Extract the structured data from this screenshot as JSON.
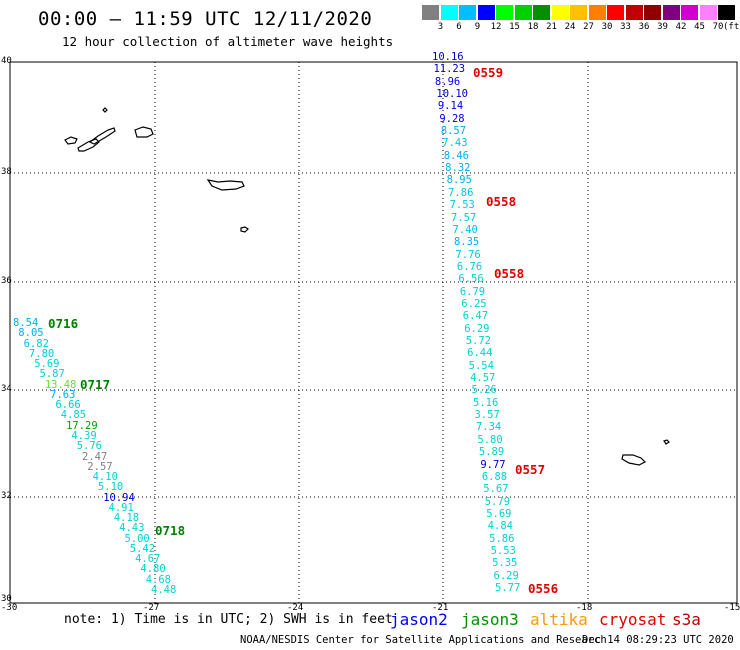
{
  "title": "00:00 – 11:59 UTC 12/11/2020",
  "subtitle": "12 hour collection of altimeter wave heights",
  "colorbar": {
    "colors": [
      "#808080",
      "#00ffff",
      "#00bfff",
      "#0000ff",
      "#00ff00",
      "#00d000",
      "#009000",
      "#ffff00",
      "#ffc000",
      "#ff8000",
      "#ff0000",
      "#c00000",
      "#900000",
      "#800080",
      "#d000d0",
      "#ff80ff",
      "#000000"
    ],
    "labels": [
      "3",
      "6",
      "9",
      "12",
      "15",
      "18",
      "21",
      "24",
      "27",
      "30",
      "33",
      "36",
      "39",
      "42",
      "45",
      "70"
    ],
    "unit": "(ft)"
  },
  "axes": {
    "y_labels": [
      "40",
      "38",
      "36",
      "34",
      "32",
      "30"
    ],
    "x_labels": [
      "-30",
      "-27",
      "-24",
      "-21",
      "-18",
      "-15"
    ]
  },
  "tracks": [
    {
      "name": "track-east",
      "values": [
        {
          "v": "10.16",
          "c": "#0000c8"
        },
        {
          "v": "11.23",
          "c": "#0000c8"
        },
        {
          "v": "8.96",
          "c": "#0000ff"
        },
        {
          "v": "10.10",
          "c": "#0000c8"
        },
        {
          "v": "9.14",
          "c": "#0000ff"
        },
        {
          "v": "9.28",
          "c": "#0000ff"
        },
        {
          "v": "8.57",
          "c": "#00aeef"
        },
        {
          "v": "7.43",
          "c": "#00c8e0"
        },
        {
          "v": "8.46",
          "c": "#00aeef"
        },
        {
          "v": "8.32",
          "c": "#00aeef"
        },
        {
          "v": "8.95",
          "c": "#00aeef"
        },
        {
          "v": "7.86",
          "c": "#00c8e0"
        },
        {
          "v": "7.53",
          "c": "#00c8e0"
        },
        {
          "v": "7.57",
          "c": "#00c8e0"
        },
        {
          "v": "7.40",
          "c": "#00c8e0"
        },
        {
          "v": "8.35",
          "c": "#00aeef"
        },
        {
          "v": "7.76",
          "c": "#00c8e0"
        },
        {
          "v": "6.76",
          "c": "#00d2d2"
        },
        {
          "v": "6.56",
          "c": "#00d2d2"
        },
        {
          "v": "6.79",
          "c": "#00d2d2"
        },
        {
          "v": "6.25",
          "c": "#00d2d2"
        },
        {
          "v": "6.47",
          "c": "#00d2d2"
        },
        {
          "v": "6.29",
          "c": "#00d2d2"
        },
        {
          "v": "5.72",
          "c": "#00d2d2"
        },
        {
          "v": "6.44",
          "c": "#00d2d2"
        },
        {
          "v": "5.54",
          "c": "#00d2d2"
        },
        {
          "v": "4.57",
          "c": "#00d2d2"
        },
        {
          "v": "5.26",
          "c": "#00d2d2"
        },
        {
          "v": "5.16",
          "c": "#00d2d2"
        },
        {
          "v": "3.57",
          "c": "#00d2d2"
        },
        {
          "v": "7.34",
          "c": "#00c8e0"
        },
        {
          "v": "5.80",
          "c": "#00d2d2"
        },
        {
          "v": "5.89",
          "c": "#00d2d2"
        },
        {
          "v": "9.77",
          "c": "#0000c8"
        },
        {
          "v": "6.88",
          "c": "#00d2d2"
        },
        {
          "v": "5.67",
          "c": "#00d2d2"
        },
        {
          "v": "5.79",
          "c": "#00d2d2"
        },
        {
          "v": "5.69",
          "c": "#00d2d2"
        },
        {
          "v": "4.84",
          "c": "#00d2d2"
        },
        {
          "v": "5.86",
          "c": "#00d2d2"
        },
        {
          "v": "5.53",
          "c": "#00d2d2"
        },
        {
          "v": "5.35",
          "c": "#00d2d2"
        },
        {
          "v": "6.29",
          "c": "#00d2d2"
        },
        {
          "v": "5.77",
          "c": "#00d2d2"
        }
      ],
      "time_labels": [
        "0559",
        "0558",
        "0558",
        "0557",
        "0556"
      ]
    },
    {
      "name": "track-west",
      "values": [
        {
          "v": "8.54",
          "c": "#00aeef"
        },
        {
          "v": "8.05",
          "c": "#00aeef"
        },
        {
          "v": "6.82",
          "c": "#00c8e0"
        },
        {
          "v": "7.80",
          "c": "#00c8e0"
        },
        {
          "v": "5.69",
          "c": "#00d2d2"
        },
        {
          "v": "5.87",
          "c": "#00d2d2"
        },
        {
          "v": "13.48",
          "c": "#66dd33"
        },
        {
          "v": "7.63",
          "c": "#00aeef"
        },
        {
          "v": "6.66",
          "c": "#00c8e0"
        },
        {
          "v": "4.85",
          "c": "#00d2d2"
        },
        {
          "v": "17.29",
          "c": "#00a000"
        },
        {
          "v": "4.39",
          "c": "#00d2d2"
        },
        {
          "v": "5.76",
          "c": "#00d2d2"
        },
        {
          "v": "2.47",
          "c": "#808080"
        },
        {
          "v": "2.57",
          "c": "#808080"
        },
        {
          "v": "4.10",
          "c": "#00d2d2"
        },
        {
          "v": "5.10",
          "c": "#00d2d2"
        },
        {
          "v": "10.94",
          "c": "#0000c8"
        },
        {
          "v": "4.91",
          "c": "#00d2d2"
        },
        {
          "v": "4.18",
          "c": "#00d2d2"
        },
        {
          "v": "4.43",
          "c": "#00d2d2"
        },
        {
          "v": "5.00",
          "c": "#00d2d2"
        },
        {
          "v": "5.42",
          "c": "#00d2d2"
        },
        {
          "v": "4.67",
          "c": "#00d2d2"
        },
        {
          "v": "4.80",
          "c": "#00d2d2"
        },
        {
          "v": "4.68",
          "c": "#00d2d2"
        },
        {
          "v": "4.48",
          "c": "#00d2d2"
        }
      ],
      "time_labels": [
        "0716",
        "0717",
        "0718"
      ]
    }
  ],
  "note": "note: 1) Time is in UTC; 2) SWH is in feet",
  "legend": [
    {
      "label": "jason2",
      "color": "#0000ff"
    },
    {
      "label": "jason3",
      "color": "#009000"
    },
    {
      "label": "altika",
      "color": "#ff9900"
    },
    {
      "label": "cryosat",
      "color": "#e00000"
    },
    {
      "label": "s3a",
      "color": "#c00000"
    }
  ],
  "footer": {
    "credit": "NOAA/NESDIS Center for Satellite Applications and Research",
    "timestamp": "Dec 14 08:29:23 UTC 2020"
  }
}
